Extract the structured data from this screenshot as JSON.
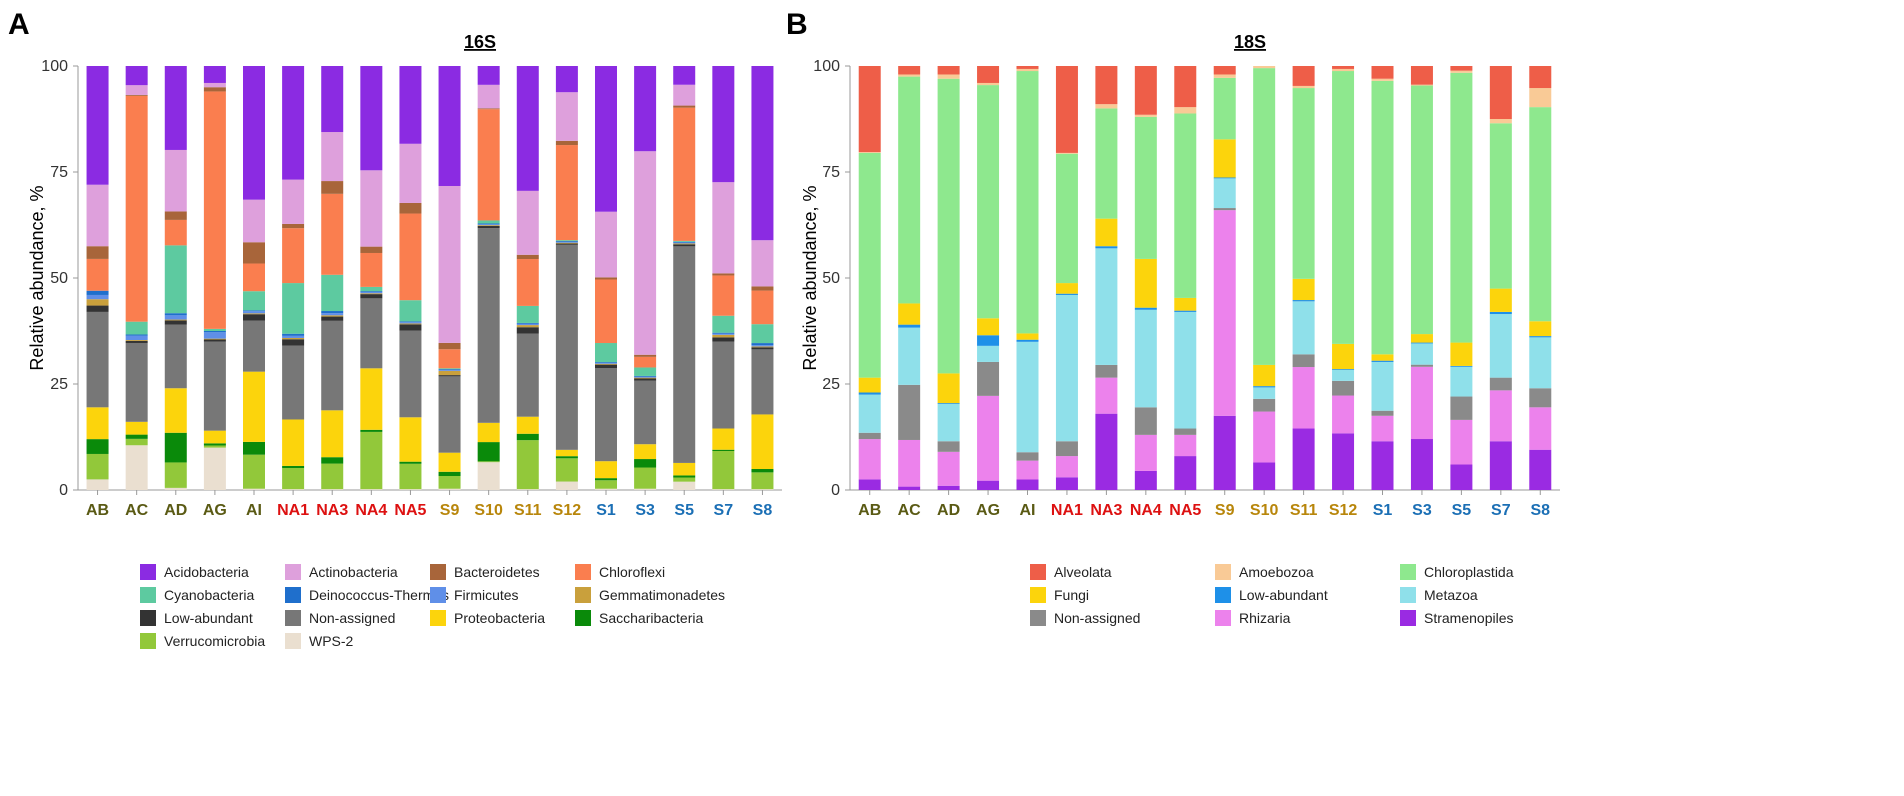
{
  "chart_data": [
    {
      "type": "bar",
      "stacked": true,
      "panel": "A",
      "title": "16S",
      "xlabel": "",
      "ylabel": "Relative abundance, %",
      "ylim": [
        0,
        100
      ],
      "yticks": [
        0,
        25,
        50,
        75,
        100
      ],
      "categories": [
        "AB",
        "AC",
        "AD",
        "AG",
        "AI",
        "NA1",
        "NA3",
        "NA4",
        "NA5",
        "S9",
        "S10",
        "S11",
        "S12",
        "S1",
        "S3",
        "S5",
        "S7",
        "S8"
      ],
      "category_colors": [
        "#5a5a14",
        "#5a5a14",
        "#5a5a14",
        "#5a5a14",
        "#5a5a14",
        "#dd1111",
        "#dd1111",
        "#dd1111",
        "#dd1111",
        "#b8860b",
        "#b8860b",
        "#b8860b",
        "#b8860b",
        "#1b6fb5",
        "#1b6fb5",
        "#1b6fb5",
        "#1b6fb5",
        "#1b6fb5"
      ],
      "series": [
        {
          "name": "WPS-2",
          "color": "#eadfd0",
          "values": [
            2.5,
            10.5,
            0.5,
            10,
            0.3,
            0.2,
            0.2,
            0.2,
            0.2,
            0.3,
            6.5,
            0.2,
            2,
            0.3,
            0.3,
            2,
            0.2,
            0.2
          ]
        },
        {
          "name": "Verrucomicrobia",
          "color": "#92c83a",
          "values": [
            6,
            1.5,
            6,
            0.5,
            8,
            5,
            6,
            13.5,
            6,
            3,
            0.2,
            11.5,
            5.5,
            2,
            5,
            1,
            9,
            4
          ]
        },
        {
          "name": "Saccharibacteria",
          "color": "#0a8a0a",
          "values": [
            3.5,
            1,
            7,
            0.5,
            3,
            0.5,
            1.5,
            0.5,
            0.5,
            1,
            4.5,
            1.5,
            0.5,
            0.5,
            2,
            0.5,
            0.3,
            0.8
          ]
        },
        {
          "name": "Proteobacteria",
          "color": "#fcd40c",
          "values": [
            7.5,
            3,
            10.5,
            3,
            16.5,
            11,
            11,
            14.5,
            10.5,
            4.5,
            4.5,
            4,
            1.5,
            4,
            3.5,
            3,
            5,
            13
          ]
        },
        {
          "name": "Non-assigned",
          "color": "#777777",
          "values": [
            22.5,
            18.5,
            15,
            21,
            12,
            17.5,
            21,
            16.5,
            20.5,
            18,
            45.5,
            19.5,
            48.5,
            22,
            15,
            52,
            20.5,
            15.5
          ]
        },
        {
          "name": "Low-abundant",
          "color": "#333333",
          "values": [
            1.5,
            0.5,
            1,
            0.5,
            1.5,
            1.5,
            1,
            1,
            1.5,
            0.3,
            0.5,
            1.5,
            0.3,
            0.8,
            0.5,
            0.5,
            1,
            0.5
          ]
        },
        {
          "name": "Gemmatimonadetes",
          "color": "#c9a03c",
          "values": [
            1.5,
            0.2,
            0.2,
            0.2,
            0.2,
            0.3,
            0.3,
            0.2,
            0.2,
            1,
            0.2,
            0.5,
            0.2,
            0.2,
            0.2,
            0.2,
            0.6,
            0.2
          ]
        },
        {
          "name": "Firmicutes",
          "color": "#5f8fe8",
          "values": [
            1,
            1,
            1,
            1.5,
            0.5,
            0.5,
            0.5,
            0.3,
            0.3,
            0.2,
            0.2,
            0.3,
            0.2,
            0.2,
            0.2,
            0.2,
            0.3,
            0.3
          ]
        },
        {
          "name": "Deinococcus-Thermus",
          "color": "#1f6fcc",
          "values": [
            1,
            0.3,
            0.5,
            0.3,
            0.2,
            0.5,
            0.5,
            0.2,
            0.2,
            0.2,
            0.2,
            0.2,
            0.2,
            0.2,
            0.2,
            0.2,
            0.2,
            0.5
          ]
        },
        {
          "name": "Cyanobacteria",
          "color": "#5dcaa0",
          "values": [
            0,
            3,
            16,
            0.5,
            4.5,
            12,
            8.5,
            1,
            5,
            0.2,
            0.7,
            4,
            0.2,
            4.5,
            2,
            0.2,
            4,
            4.5
          ]
        },
        {
          "name": "Chloroflexi",
          "color": "#fa7e4f",
          "values": [
            7.5,
            53,
            6,
            56,
            6.5,
            13,
            19,
            8,
            20.5,
            4.5,
            26,
            11,
            22.5,
            15,
            2.5,
            32,
            9.5,
            8
          ]
        },
        {
          "name": "Bacteroidetes",
          "color": "#a8653a",
          "values": [
            3,
            0.2,
            2,
            1,
            5,
            1,
            3,
            1.5,
            2.5,
            1.5,
            0.2,
            1,
            1,
            0.5,
            0.5,
            0.5,
            0.5,
            1
          ]
        },
        {
          "name": "Actinobacteria",
          "color": "#dea0dc",
          "values": [
            14.5,
            2.3,
            14.5,
            1,
            10,
            10.5,
            11.5,
            18,
            14,
            37,
            5.5,
            15,
            11.5,
            15.5,
            48,
            5,
            21.5,
            11
          ]
        },
        {
          "name": "Acidobacteria",
          "color": "#8b2be2",
          "values": [
            28,
            4.5,
            19.8,
            4,
            31.4,
            26.9,
            15.5,
            24.6,
            18.4,
            28.3,
            4.4,
            29.3,
            6.2,
            34.4,
            20.1,
            4.5,
            27.4,
            41.5
          ]
        }
      ],
      "legend": {
        "placement": "bottom",
        "columns": 4,
        "entries": [
          {
            "name": "Acidobacteria",
            "color": "#8b2be2"
          },
          {
            "name": "Actinobacteria",
            "color": "#dea0dc"
          },
          {
            "name": "Bacteroidetes",
            "color": "#a8653a"
          },
          {
            "name": "Chloroflexi",
            "color": "#fa7e4f"
          },
          {
            "name": "Cyanobacteria",
            "color": "#5dcaa0"
          },
          {
            "name": "Deinococcus-Thermus",
            "color": "#1f6fcc"
          },
          {
            "name": "Firmicutes",
            "color": "#5f8fe8"
          },
          {
            "name": "Gemmatimonadetes",
            "color": "#c9a03c"
          },
          {
            "name": "Low-abundant",
            "color": "#333333"
          },
          {
            "name": "Non-assigned",
            "color": "#777777"
          },
          {
            "name": "Proteobacteria",
            "color": "#fcd40c"
          },
          {
            "name": "Saccharibacteria",
            "color": "#0a8a0a"
          },
          {
            "name": "Verrucomicrobia",
            "color": "#92c83a"
          },
          {
            "name": "WPS-2",
            "color": "#eadfd0"
          }
        ]
      }
    },
    {
      "type": "bar",
      "stacked": true,
      "panel": "B",
      "title": "18S",
      "xlabel": "",
      "ylabel": "Relative abundance, %",
      "ylim": [
        0,
        100
      ],
      "yticks": [
        0,
        25,
        50,
        75,
        100
      ],
      "categories": [
        "AB",
        "AC",
        "AD",
        "AG",
        "AI",
        "NA1",
        "NA3",
        "NA4",
        "NA5",
        "S9",
        "S10",
        "S11",
        "S12",
        "S1",
        "S3",
        "S5",
        "S7",
        "S8"
      ],
      "category_colors": [
        "#5a5a14",
        "#5a5a14",
        "#5a5a14",
        "#5a5a14",
        "#5a5a14",
        "#dd1111",
        "#dd1111",
        "#dd1111",
        "#dd1111",
        "#b8860b",
        "#b8860b",
        "#b8860b",
        "#b8860b",
        "#1b6fb5",
        "#1b6fb5",
        "#1b6fb5",
        "#1b6fb5",
        "#1b6fb5"
      ],
      "series": [
        {
          "name": "Stramenopiles",
          "color": "#9a2be2",
          "values": [
            2.5,
            0.8,
            1,
            2.2,
            2.5,
            3,
            18,
            4.5,
            8,
            17.5,
            6.5,
            14.5,
            13.5,
            11.5,
            12,
            6,
            11.5,
            9.5
          ]
        },
        {
          "name": "Rhizaria",
          "color": "#ec82ec",
          "values": [
            9.5,
            11,
            8,
            20,
            4.5,
            5,
            8.5,
            8.5,
            5,
            48.5,
            12,
            14.5,
            9,
            6,
            17,
            10.5,
            12,
            10
          ]
        },
        {
          "name": "Non-assigned",
          "color": "#8a8a8a",
          "values": [
            1.5,
            13,
            2.5,
            8,
            2,
            3.5,
            3,
            6.5,
            1.5,
            0.5,
            3,
            3,
            3.5,
            1.2,
            0.5,
            5.5,
            3,
            4.5
          ]
        },
        {
          "name": "Metazoa",
          "color": "#8fe0ea",
          "values": [
            9,
            13.5,
            8.8,
            3.8,
            26.3,
            34.5,
            27.5,
            23,
            27.5,
            7,
            2.7,
            12.5,
            2.6,
            11.5,
            5,
            7,
            15,
            12
          ]
        },
        {
          "name": "Low-abundant",
          "color": "#1e90e8",
          "values": [
            0.5,
            0.7,
            0.2,
            2.5,
            0.5,
            0.3,
            0.5,
            0.5,
            0.3,
            0.2,
            0.3,
            0.3,
            0.2,
            0.3,
            0.2,
            0.2,
            0.5,
            0.3
          ]
        },
        {
          "name": "Fungi",
          "color": "#fcd40c",
          "values": [
            3.5,
            5,
            7,
            4,
            1.5,
            2.5,
            6.5,
            11.5,
            3,
            9,
            5,
            5,
            6,
            1.5,
            2,
            5.5,
            5.5,
            3.5
          ]
        },
        {
          "name": "Chloroplastida",
          "color": "#8ee88e",
          "values": [
            53,
            53.5,
            69.5,
            55,
            62.5,
            30.5,
            26,
            33.5,
            43.5,
            14.5,
            70,
            45,
            65,
            64.5,
            58.5,
            63.5,
            39,
            50.5
          ]
        },
        {
          "name": "Amoebozoa",
          "color": "#f9ca96",
          "values": [
            0.2,
            0.5,
            1,
            0.5,
            0.5,
            0.2,
            1,
            0.5,
            1.5,
            0.8,
            0.5,
            0.5,
            0.5,
            0.5,
            0.2,
            0.5,
            1,
            4.5
          ]
        },
        {
          "name": "Alveolata",
          "color": "#ee5e48",
          "values": [
            20.3,
            2,
            2,
            4,
            0.7,
            20.5,
            9,
            11.5,
            9.7,
            2,
            0,
            4.7,
            0.7,
            3,
            4.4,
            1.1,
            12.5,
            5.2
          ]
        }
      ],
      "legend": {
        "placement": "bottom",
        "columns": 3,
        "entries": [
          {
            "name": "Alveolata",
            "color": "#ee5e48"
          },
          {
            "name": "Amoebozoa",
            "color": "#f9ca96"
          },
          {
            "name": "Chloroplastida",
            "color": "#8ee88e"
          },
          {
            "name": "Fungi",
            "color": "#fcd40c"
          },
          {
            "name": "Low-abundant",
            "color": "#1e90e8"
          },
          {
            "name": "Metazoa",
            "color": "#8fe0ea"
          },
          {
            "name": "Non-assigned",
            "color": "#8a8a8a"
          },
          {
            "name": "Rhizaria",
            "color": "#ec82ec"
          },
          {
            "name": "Stramenopiles",
            "color": "#9a2be2"
          }
        ]
      }
    }
  ]
}
